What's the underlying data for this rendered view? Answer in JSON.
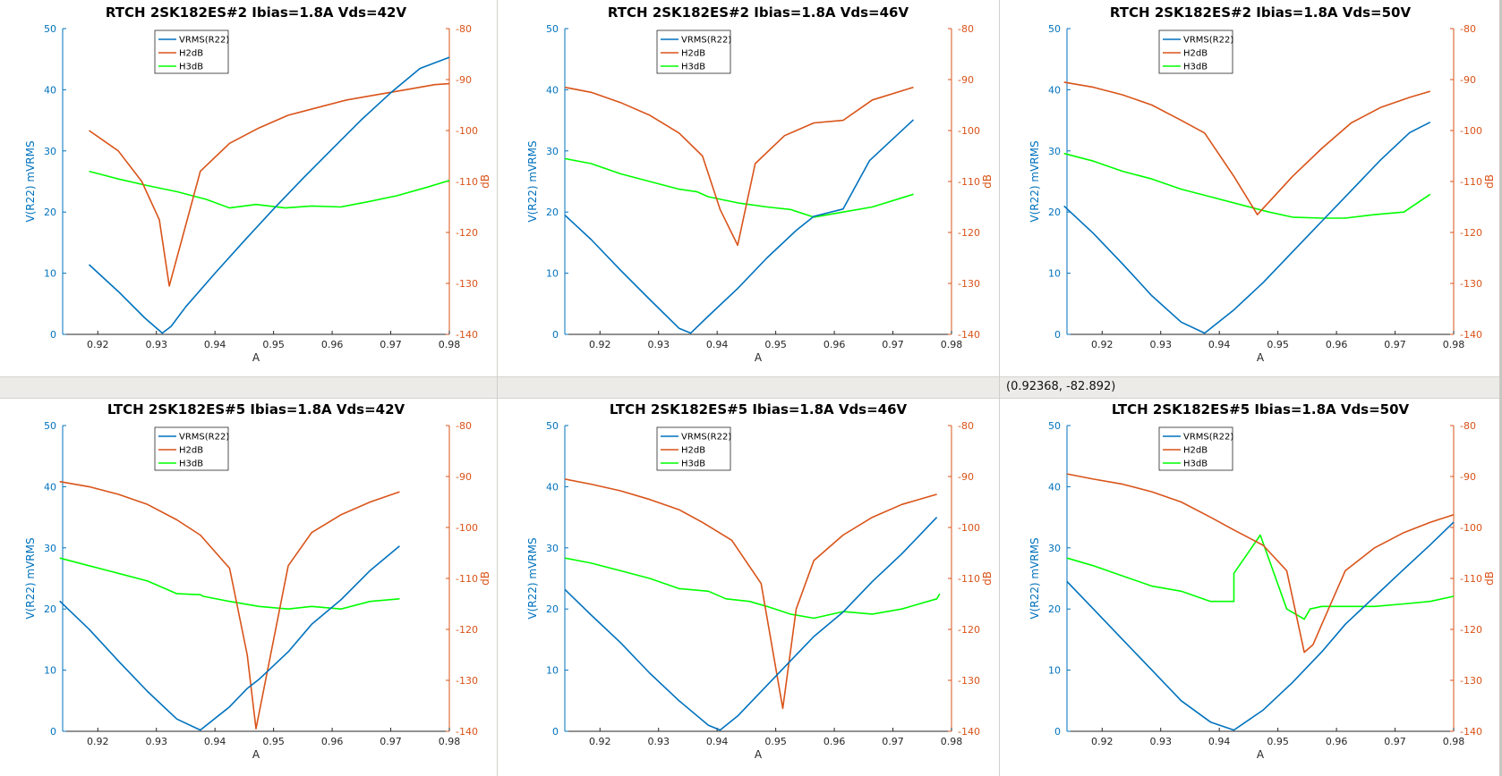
{
  "status": {
    "coordinates": "(0.92368, -82.892)"
  },
  "colors": {
    "left_axis": "#0072bd",
    "right_axis": "#d95319",
    "vrms": "#0072bd",
    "h2": "#d95319",
    "h3": "#00ff00",
    "background": "#ffffff",
    "status_bar": "#ecebe8"
  },
  "chart_data": [
    {
      "type": "line",
      "title": "RTCH 2SK182ES#2 Ibias=1.8A Vds=42V",
      "xlabel": "A",
      "ylabel": "V(R22) mVRMS",
      "y2label": "dB",
      "xlim": [
        0.914,
        0.98
      ],
      "xticks": [
        "0.92",
        "0.93",
        "0.94",
        "0.95",
        "0.96",
        "0.97",
        "0.98"
      ],
      "ylim": [
        0,
        50
      ],
      "yticks": [
        "0",
        "10",
        "20",
        "30",
        "40",
        "50"
      ],
      "y2lim": [
        -140,
        -80
      ],
      "y2ticks": [
        "-140",
        "-130",
        "-120",
        "-110",
        "-100",
        "-90",
        "-80"
      ],
      "legend_location": "top-center",
      "grid": false,
      "series": [
        {
          "name": "VRMS(R22)",
          "axis": "left",
          "x": [
            0.9185,
            0.9235,
            0.928,
            0.931,
            0.9325,
            0.935,
            0.94,
            0.945,
            0.95,
            0.955,
            0.96,
            0.965,
            0.97,
            0.975,
            0.98
          ],
          "y": [
            11.4,
            7,
            2.7,
            0.2,
            1.3,
            4.5,
            10,
            15.3,
            20.5,
            25.5,
            30.3,
            35.1,
            39.5,
            43.5,
            45.3
          ]
        },
        {
          "name": "H2dB",
          "axis": "right",
          "x": [
            0.9185,
            0.9235,
            0.9275,
            0.9305,
            0.9322,
            0.9375,
            0.9425,
            0.9475,
            0.9525,
            0.9575,
            0.9625,
            0.9675,
            0.9725,
            0.9775,
            0.98
          ],
          "y": [
            -100,
            -104,
            -110,
            -117.5,
            -130.5,
            -108,
            -102.5,
            -99.5,
            -97,
            -95.5,
            -94,
            -93,
            -92,
            -91,
            -90.8
          ]
        },
        {
          "name": "H3dB",
          "axis": "right",
          "x": [
            0.9185,
            0.9235,
            0.9285,
            0.9335,
            0.9385,
            0.9425,
            0.947,
            0.952,
            0.9565,
            0.9615,
            0.966,
            0.971,
            0.976,
            0.98
          ],
          "y": [
            -108,
            -109.5,
            -110.8,
            -112,
            -113.5,
            -115.2,
            -114.5,
            -115.2,
            -114.8,
            -115,
            -114,
            -112.8,
            -111.2,
            -109.8
          ]
        }
      ]
    },
    {
      "type": "line",
      "title": "RTCH 2SK182ES#2 Ibias=1.8A Vds=46V",
      "xlabel": "A",
      "ylabel": "V(R22) mVRMS",
      "y2label": "dB",
      "xlim": [
        0.914,
        0.98
      ],
      "xticks": [
        "0.92",
        "0.93",
        "0.94",
        "0.95",
        "0.96",
        "0.97",
        "0.98"
      ],
      "ylim": [
        0,
        50
      ],
      "yticks": [
        "0",
        "10",
        "20",
        "30",
        "40",
        "50"
      ],
      "y2lim": [
        -140,
        -80
      ],
      "y2ticks": [
        "-140",
        "-130",
        "-120",
        "-110",
        "-100",
        "-90",
        "-80"
      ],
      "legend_location": "top-center",
      "grid": false,
      "series": [
        {
          "name": "VRMS(R22)",
          "axis": "left",
          "x": [
            0.914,
            0.9185,
            0.9235,
            0.9285,
            0.9335,
            0.9355,
            0.9385,
            0.9435,
            0.9485,
            0.9535,
            0.9565,
            0.9615,
            0.966,
            0.9735
          ],
          "y": [
            19.5,
            15.5,
            10.5,
            5.7,
            1,
            0.2,
            3,
            7.5,
            12.5,
            17,
            19.3,
            20.5,
            28.4,
            35.1
          ]
        },
        {
          "name": "H2dB",
          "axis": "right",
          "x": [
            0.914,
            0.9185,
            0.9235,
            0.9285,
            0.9335,
            0.9375,
            0.9405,
            0.9435,
            0.9465,
            0.9515,
            0.9565,
            0.9615,
            0.9665,
            0.9735
          ],
          "y": [
            -91.5,
            -92.5,
            -94.5,
            -97,
            -100.5,
            -105,
            -115.5,
            -122.5,
            -106.5,
            -101,
            -98.5,
            -98,
            -94,
            -91.5
          ]
        },
        {
          "name": "H3dB",
          "axis": "right",
          "x": [
            0.914,
            0.9185,
            0.9235,
            0.9285,
            0.9335,
            0.9365,
            0.9385,
            0.9435,
            0.9485,
            0.9525,
            0.9565,
            0.9615,
            0.9665,
            0.9735
          ],
          "y": [
            -105.5,
            -106.5,
            -108.5,
            -110,
            -111.5,
            -112,
            -113,
            -114.2,
            -115,
            -115.5,
            -117,
            -116,
            -115,
            -112.5
          ]
        }
      ]
    },
    {
      "type": "line",
      "title": "RTCH 2SK182ES#2 Ibias=1.8A Vds=50V",
      "xlabel": "A",
      "ylabel": "V(R22) mVRMS",
      "y2label": "dB",
      "xlim": [
        0.914,
        0.98
      ],
      "xticks": [
        "0.92",
        "0.93",
        "0.94",
        "0.95",
        "0.96",
        "0.97",
        "0.98"
      ],
      "ylim": [
        0,
        50
      ],
      "yticks": [
        "0",
        "10",
        "20",
        "30",
        "40",
        "50"
      ],
      "y2lim": [
        -140,
        -80
      ],
      "y2ticks": [
        "-140",
        "-130",
        "-120",
        "-110",
        "-100",
        "-90",
        "-80"
      ],
      "legend_location": "top-center",
      "grid": false,
      "series": [
        {
          "name": "VRMS(R22)",
          "axis": "left",
          "x": [
            0.9135,
            0.9185,
            0.9235,
            0.9285,
            0.9335,
            0.9375,
            0.9425,
            0.9475,
            0.9525,
            0.9575,
            0.9625,
            0.9675,
            0.9725,
            0.976
          ],
          "y": [
            21,
            16.5,
            11.5,
            6.3,
            2,
            0.2,
            4,
            8.5,
            13.5,
            18.5,
            23.5,
            28.5,
            33,
            34.7
          ]
        },
        {
          "name": "H2dB",
          "axis": "right",
          "x": [
            0.9135,
            0.9185,
            0.9235,
            0.9285,
            0.9335,
            0.9375,
            0.9425,
            0.9465,
            0.9525,
            0.9575,
            0.9625,
            0.9675,
            0.9725,
            0.976
          ],
          "y": [
            -90.5,
            -91.5,
            -93,
            -95,
            -98,
            -100.5,
            -109,
            -116.5,
            -109,
            -103.5,
            -98.5,
            -95.5,
            -93.5,
            -92.3
          ]
        },
        {
          "name": "H3dB",
          "axis": "right",
          "x": [
            0.9135,
            0.9185,
            0.9235,
            0.9285,
            0.9335,
            0.9385,
            0.9435,
            0.9485,
            0.9525,
            0.9575,
            0.9615,
            0.9665,
            0.9715,
            0.976
          ],
          "y": [
            -104.5,
            -106,
            -108,
            -109.5,
            -111.5,
            -113,
            -114.5,
            -116,
            -117,
            -117.2,
            -117.2,
            -116.5,
            -116,
            -112.5
          ]
        }
      ]
    },
    {
      "type": "line",
      "title": "LTCH 2SK182ES#5 Ibias=1.8A Vds=42V",
      "xlabel": "A",
      "ylabel": "V(R22) mVRMS",
      "y2label": "dB",
      "xlim": [
        0.914,
        0.98
      ],
      "xticks": [
        "0.92",
        "0.93",
        "0.94",
        "0.95",
        "0.96",
        "0.97",
        "0.98"
      ],
      "ylim": [
        0,
        50
      ],
      "yticks": [
        "0",
        "10",
        "20",
        "30",
        "40",
        "50"
      ],
      "y2lim": [
        -140,
        -80
      ],
      "y2ticks": [
        "-140",
        "-130",
        "-120",
        "-110",
        "-100",
        "-90",
        "-80"
      ],
      "legend_location": "top-center",
      "grid": false,
      "series": [
        {
          "name": "VRMS(R22)",
          "axis": "left",
          "x": [
            0.9135,
            0.9185,
            0.9235,
            0.9285,
            0.9335,
            0.9375,
            0.9425,
            0.9455,
            0.9475,
            0.9525,
            0.9565,
            0.9615,
            0.9665,
            0.9715
          ],
          "y": [
            21.3,
            16.7,
            11.5,
            6.5,
            2,
            0.2,
            4,
            7,
            8.5,
            13,
            17.5,
            21.5,
            26.3,
            30.3
          ]
        },
        {
          "name": "H2dB",
          "axis": "right",
          "x": [
            0.9135,
            0.9185,
            0.9235,
            0.9285,
            0.9335,
            0.9375,
            0.9425,
            0.9455,
            0.947,
            0.9525,
            0.9565,
            0.9615,
            0.9665,
            0.9715
          ],
          "y": [
            -91,
            -92,
            -93.5,
            -95.5,
            -98.5,
            -101.5,
            -108,
            -125,
            -139.5,
            -107.5,
            -101,
            -97.5,
            -95,
            -93
          ]
        },
        {
          "name": "H3dB",
          "axis": "right",
          "x": [
            0.9135,
            0.9185,
            0.9235,
            0.9285,
            0.9335,
            0.9375,
            0.938,
            0.9425,
            0.9475,
            0.9525,
            0.9565,
            0.9615,
            0.9665,
            0.9715
          ],
          "y": [
            -106,
            -107.5,
            -109,
            -110.5,
            -113,
            -113.2,
            -113.5,
            -114.5,
            -115.5,
            -116,
            -115.5,
            -116,
            -114.5,
            -114
          ]
        }
      ]
    },
    {
      "type": "line",
      "title": "LTCH 2SK182ES#5 Ibias=1.8A Vds=46V",
      "xlabel": "A",
      "ylabel": "V(R22) mVRMS",
      "y2label": "dB",
      "xlim": [
        0.914,
        0.98
      ],
      "xticks": [
        "0.92",
        "0.93",
        "0.94",
        "0.95",
        "0.96",
        "0.97",
        "0.98"
      ],
      "ylim": [
        0,
        50
      ],
      "yticks": [
        "0",
        "10",
        "20",
        "30",
        "40",
        "50"
      ],
      "y2lim": [
        -140,
        -80
      ],
      "y2ticks": [
        "-140",
        "-130",
        "-120",
        "-110",
        "-100",
        "-90",
        "-80"
      ],
      "legend_location": "top-center",
      "grid": false,
      "series": [
        {
          "name": "VRMS(R22)",
          "axis": "left",
          "x": [
            0.914,
            0.9185,
            0.9235,
            0.9285,
            0.9335,
            0.9385,
            0.9405,
            0.9435,
            0.9485,
            0.9525,
            0.9565,
            0.9615,
            0.9665,
            0.9715,
            0.9775
          ],
          "y": [
            23.2,
            19,
            14.5,
            9.5,
            5,
            1,
            0.2,
            2.5,
            7.5,
            11.5,
            15.5,
            19.5,
            24.5,
            29,
            35
          ]
        },
        {
          "name": "H2dB",
          "axis": "right",
          "x": [
            0.914,
            0.9185,
            0.9235,
            0.9285,
            0.9335,
            0.9375,
            0.9425,
            0.9475,
            0.9512,
            0.9535,
            0.9565,
            0.9615,
            0.9665,
            0.9715,
            0.9775
          ],
          "y": [
            -90.5,
            -91.5,
            -92.8,
            -94.5,
            -96.5,
            -99,
            -102.5,
            -111,
            -135.5,
            -116,
            -106.5,
            -101.5,
            -98,
            -95.5,
            -93.5
          ]
        },
        {
          "name": "H3dB",
          "axis": "right",
          "x": [
            0.914,
            0.9185,
            0.9235,
            0.9285,
            0.9335,
            0.9385,
            0.9415,
            0.9455,
            0.9485,
            0.9525,
            0.9565,
            0.9615,
            0.9665,
            0.9715,
            0.9775,
            0.978
          ],
          "y": [
            -106,
            -107,
            -108.5,
            -110,
            -112,
            -112.5,
            -114,
            -114.5,
            -115.5,
            -117,
            -117.8,
            -116.5,
            -117,
            -116,
            -114,
            -113
          ]
        }
      ]
    },
    {
      "type": "line",
      "title": "LTCH 2SK182ES#5 Ibias=1.8A Vds=50V",
      "xlabel": "A",
      "ylabel": "V(R22) mVRMS",
      "y2label": "dB",
      "xlim": [
        0.914,
        0.98
      ],
      "xticks": [
        "0.92",
        "0.93",
        "0.94",
        "0.95",
        "0.96",
        "0.97",
        "0.98"
      ],
      "ylim": [
        0,
        50
      ],
      "yticks": [
        "0",
        "10",
        "20",
        "30",
        "40",
        "50"
      ],
      "y2lim": [
        -140,
        -80
      ],
      "y2ticks": [
        "-140",
        "-130",
        "-120",
        "-110",
        "-100",
        "-90",
        "-80"
      ],
      "legend_location": "top-center",
      "grid": false,
      "series": [
        {
          "name": "VRMS(R22)",
          "axis": "left",
          "x": [
            0.914,
            0.9185,
            0.9235,
            0.9285,
            0.9335,
            0.9385,
            0.9425,
            0.9475,
            0.9525,
            0.9575,
            0.9615,
            0.9665,
            0.9715,
            0.976,
            0.98
          ],
          "y": [
            24.5,
            20,
            15,
            10,
            5,
            1.5,
            0.2,
            3.5,
            8,
            13,
            17.5,
            22,
            26.5,
            30.5,
            34.2
          ]
        },
        {
          "name": "H2dB",
          "axis": "right",
          "x": [
            0.914,
            0.9185,
            0.9235,
            0.9285,
            0.9335,
            0.9385,
            0.9425,
            0.9475,
            0.9515,
            0.9545,
            0.956,
            0.9575,
            0.9615,
            0.9665,
            0.9715,
            0.976,
            0.98
          ],
          "y": [
            -89.5,
            -90.5,
            -91.5,
            -93,
            -95,
            -98,
            -100.5,
            -103.5,
            -108.5,
            -124.5,
            -123,
            -119,
            -108.5,
            -104,
            -101,
            -99,
            -97.5
          ]
        },
        {
          "name": "H3dB",
          "axis": "right",
          "x": [
            0.914,
            0.9185,
            0.9235,
            0.9285,
            0.9335,
            0.9385,
            0.9425,
            0.9425,
            0.947,
            0.9515,
            0.9545,
            0.9555,
            0.9575,
            0.9615,
            0.9665,
            0.9715,
            0.976,
            0.98
          ],
          "y": [
            -106,
            -107.5,
            -109.5,
            -111.5,
            -112.5,
            -114.5,
            -114.5,
            -109,
            -101.5,
            -116,
            -118,
            -116,
            -115.5,
            -115.5,
            -115.5,
            -115,
            -114.5,
            -113.5
          ]
        }
      ]
    }
  ]
}
